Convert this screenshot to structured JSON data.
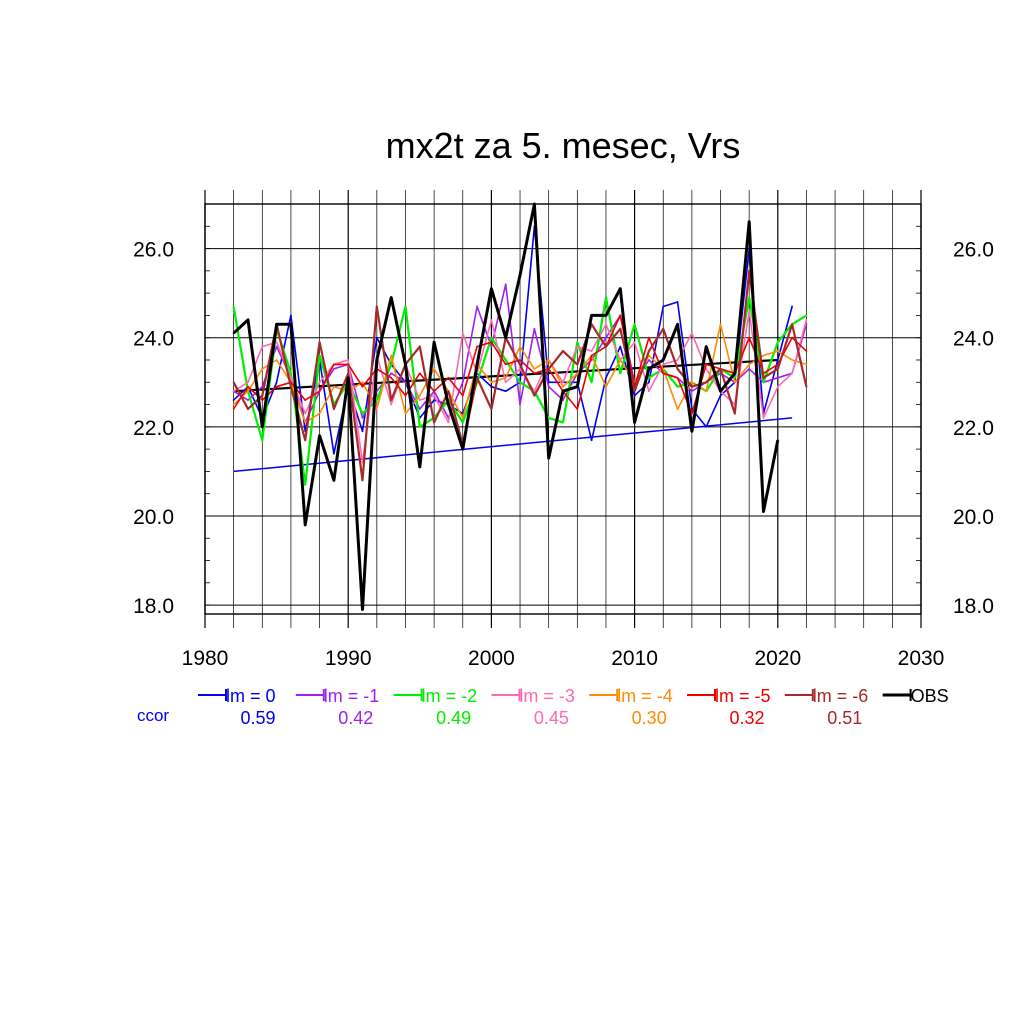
{
  "chart_data": {
    "type": "line",
    "title": "mx2t za 5. mesec, Vrs",
    "xlabel": "",
    "ylabel": "",
    "xlim": [
      1980,
      2030
    ],
    "ylim": [
      17.8,
      27.0
    ],
    "x_ticks": [
      "1980",
      "1990",
      "2000",
      "2010",
      "2020",
      "2030"
    ],
    "y_ticks": [
      "18.0",
      "20.0",
      "22.0",
      "24.0",
      "26.0"
    ],
    "grid": true,
    "legend_position": "bottom",
    "ccor_label": "ccor",
    "series": [
      {
        "name": "lm = 0",
        "color": "#0000ee",
        "width": 1.6,
        "ccor": "0.59",
        "x": [
          1982,
          1983,
          1984,
          1985,
          1986,
          1987,
          1988,
          1989,
          1990,
          1991,
          1992,
          1993,
          1994,
          1995,
          1996,
          1997,
          1998,
          1999,
          2000,
          2001,
          2002,
          2003,
          2004,
          2005,
          2006,
          2007,
          2008,
          2009,
          2010,
          2011,
          2012,
          2013,
          2014,
          2015,
          2016,
          2017,
          2018,
          2019,
          2020,
          2021
        ],
        "y": [
          22.6,
          22.9,
          22.2,
          23.0,
          24.5,
          21.9,
          23.5,
          21.4,
          22.9,
          21.9,
          24.0,
          23.4,
          23.0,
          22.2,
          22.6,
          22.5,
          22.3,
          23.2,
          22.9,
          22.8,
          23.0,
          26.5,
          23.0,
          23.0,
          23.0,
          21.7,
          23.1,
          23.8,
          22.7,
          23.0,
          24.7,
          24.8,
          22.4,
          22.0,
          22.7,
          23.0,
          26.0,
          22.3,
          23.5,
          24.7
        ],
        "trend": [
          [
            1982,
            21.0
          ],
          [
            2021,
            22.2
          ]
        ]
      },
      {
        "name": "lm = -1",
        "color": "#a020f0",
        "width": 1.6,
        "ccor": "0.42",
        "x": [
          1982,
          1983,
          1984,
          1985,
          1986,
          1987,
          1988,
          1989,
          1990,
          1991,
          1992,
          1993,
          1994,
          1995,
          1996,
          1997,
          1998,
          1999,
          2000,
          2001,
          2002,
          2003,
          2004,
          2005,
          2006,
          2007,
          2008,
          2009,
          2010,
          2011,
          2012,
          2013,
          2014,
          2015,
          2016,
          2017,
          2018,
          2019,
          2020,
          2021,
          2022
        ],
        "y": [
          22.8,
          22.6,
          22.9,
          23.8,
          23.1,
          22.1,
          22.8,
          23.3,
          23.4,
          22.2,
          22.8,
          23.2,
          23.0,
          22.4,
          22.8,
          22.2,
          23.0,
          24.7,
          23.8,
          25.2,
          22.5,
          24.2,
          22.9,
          22.6,
          23.2,
          23.5,
          24.0,
          24.5,
          23.0,
          23.5,
          23.2,
          23.1,
          22.8,
          23.0,
          23.2,
          23.0,
          23.3,
          23.0,
          23.1,
          23.2,
          24.3
        ]
      },
      {
        "name": "lm = -2",
        "color": "#00ee00",
        "width": 2.2,
        "ccor": "0.49",
        "x": [
          1982,
          1983,
          1984,
          1985,
          1986,
          1987,
          1988,
          1989,
          1990,
          1991,
          1992,
          1993,
          1994,
          1995,
          1996,
          1997,
          1998,
          1999,
          2000,
          2001,
          2002,
          2003,
          2004,
          2005,
          2006,
          2007,
          2008,
          2009,
          2010,
          2011,
          2012,
          2013,
          2014,
          2015,
          2016,
          2017,
          2018,
          2019,
          2020,
          2021,
          2022
        ],
        "y": [
          24.7,
          22.8,
          21.7,
          24.2,
          23.2,
          20.7,
          23.6,
          22.5,
          23.0,
          22.3,
          22.6,
          23.4,
          24.7,
          22.0,
          22.2,
          22.6,
          22.1,
          23.0,
          24.0,
          23.5,
          23.0,
          22.8,
          22.2,
          22.1,
          23.9,
          23.0,
          24.9,
          23.2,
          24.3,
          23.1,
          23.3,
          22.9,
          23.0,
          22.8,
          23.3,
          23.1,
          24.9,
          23.0,
          23.9,
          24.3,
          24.5
        ]
      },
      {
        "name": "lm = -3",
        "color": "#ff69b4",
        "width": 1.6,
        "ccor": "0.45",
        "x": [
          1982,
          1983,
          1984,
          1985,
          1986,
          1987,
          1988,
          1989,
          1990,
          1991,
          1992,
          1993,
          1994,
          1995,
          1996,
          1997,
          1998,
          1999,
          2000,
          2001,
          2002,
          2003,
          2004,
          2005,
          2006,
          2007,
          2008,
          2009,
          2010,
          2011,
          2012,
          2013,
          2014,
          2015,
          2016,
          2017,
          2018,
          2019,
          2020,
          2021,
          2022
        ],
        "y": [
          22.8,
          23.0,
          23.8,
          23.9,
          23.1,
          22.3,
          23.0,
          23.4,
          23.5,
          21.2,
          23.6,
          22.5,
          23.4,
          22.6,
          22.7,
          22.1,
          24.1,
          23.2,
          24.4,
          23.0,
          23.3,
          22.8,
          23.5,
          23.0,
          23.8,
          23.7,
          24.3,
          23.5,
          23.9,
          22.8,
          23.4,
          23.5,
          24.1,
          23.3,
          22.8,
          22.5,
          24.6,
          22.2,
          22.9,
          23.2,
          24.4
        ]
      },
      {
        "name": "lm = -4",
        "color": "#ff8c00",
        "width": 1.6,
        "ccor": "0.30",
        "x": [
          1982,
          1983,
          1984,
          1985,
          1986,
          1987,
          1988,
          1989,
          1990,
          1991,
          1992,
          1993,
          1994,
          1995,
          1996,
          1997,
          1998,
          1999,
          2000,
          2001,
          2002,
          2003,
          2004,
          2005,
          2006,
          2007,
          2008,
          2009,
          2010,
          2011,
          2012,
          2013,
          2014,
          2015,
          2016,
          2017,
          2018,
          2019,
          2020,
          2021,
          2022
        ],
        "y": [
          22.5,
          22.8,
          23.3,
          23.5,
          23.0,
          22.1,
          22.3,
          22.9,
          22.8,
          23.0,
          22.4,
          23.6,
          22.3,
          22.7,
          23.3,
          22.8,
          22.2,
          23.4,
          23.0,
          23.1,
          23.8,
          23.3,
          23.5,
          22.9,
          23.2,
          23.6,
          22.9,
          23.5,
          23.0,
          23.6,
          23.3,
          22.4,
          23.0,
          22.8,
          24.3,
          23.0,
          23.4,
          23.6,
          23.7,
          23.5,
          23.4
        ]
      },
      {
        "name": "lm = -5",
        "color": "#ee0000",
        "width": 1.6,
        "ccor": "0.32",
        "x": [
          1982,
          1983,
          1984,
          1985,
          1986,
          1987,
          1988,
          1989,
          1990,
          1991,
          1992,
          1993,
          1994,
          1995,
          1996,
          1997,
          1998,
          1999,
          2000,
          2001,
          2002,
          2003,
          2004,
          2005,
          2006,
          2007,
          2008,
          2009,
          2010,
          2011,
          2012,
          2013,
          2014,
          2015,
          2016,
          2017,
          2018,
          2019,
          2020,
          2021,
          2022
        ],
        "y": [
          22.4,
          22.9,
          22.6,
          22.9,
          23.0,
          22.6,
          22.8,
          23.4,
          23.4,
          22.9,
          23.3,
          23.1,
          22.7,
          23.2,
          22.8,
          23.1,
          22.7,
          23.8,
          23.9,
          23.4,
          23.5,
          23.2,
          23.3,
          22.8,
          22.4,
          23.6,
          23.8,
          24.5,
          22.9,
          24.0,
          23.2,
          23.1,
          22.3,
          23.4,
          23.3,
          23.2,
          24.0,
          23.2,
          23.4,
          24.0,
          23.7
        ]
      },
      {
        "name": "lm = -6",
        "color": "#a52a2a",
        "width": 2.2,
        "ccor": "0.51",
        "x": [
          1982,
          1983,
          1984,
          1985,
          1986,
          1987,
          1988,
          1989,
          1990,
          1991,
          1992,
          1993,
          1994,
          1995,
          1996,
          1997,
          1998,
          1999,
          2000,
          2001,
          2002,
          2003,
          2004,
          2005,
          2006,
          2007,
          2008,
          2009,
          2010,
          2011,
          2012,
          2013,
          2014,
          2015,
          2016,
          2017,
          2018,
          2019,
          2020,
          2021,
          2022
        ],
        "y": [
          23.0,
          22.4,
          22.7,
          24.3,
          22.9,
          21.7,
          23.9,
          22.4,
          23.2,
          20.8,
          24.7,
          22.6,
          23.4,
          23.8,
          22.1,
          22.8,
          21.6,
          23.1,
          22.4,
          24.0,
          23.4,
          22.7,
          23.3,
          23.7,
          23.4,
          24.3,
          23.8,
          24.2,
          22.8,
          23.7,
          24.2,
          23.3,
          22.9,
          23.0,
          23.3,
          22.3,
          25.5,
          23.1,
          23.3,
          24.3,
          22.9
        ]
      },
      {
        "name": "OBS",
        "color": "#000000",
        "width": 3.0,
        "ccor": "",
        "x": [
          1982,
          1983,
          1984,
          1985,
          1986,
          1987,
          1988,
          1989,
          1990,
          1991,
          1992,
          1993,
          1994,
          1995,
          1996,
          1997,
          1998,
          1999,
          2000,
          2001,
          2002,
          2003,
          2004,
          2005,
          2006,
          2007,
          2008,
          2009,
          2010,
          2011,
          2012,
          2013,
          2014,
          2015,
          2016,
          2017,
          2018,
          2019,
          2020
        ],
        "y": [
          24.1,
          24.4,
          22.0,
          24.3,
          24.3,
          19.8,
          21.8,
          20.8,
          23.1,
          17.9,
          23.5,
          24.9,
          23.4,
          21.1,
          23.9,
          22.5,
          21.5,
          23.4,
          25.1,
          24.0,
          25.4,
          27.0,
          21.3,
          22.8,
          22.9,
          24.5,
          24.5,
          25.1,
          22.1,
          23.3,
          23.5,
          24.3,
          21.9,
          23.8,
          22.8,
          23.2,
          26.6,
          20.1,
          21.7
        ],
        "trend": [
          [
            1982,
            22.8
          ],
          [
            2020,
            23.5
          ]
        ]
      }
    ]
  }
}
